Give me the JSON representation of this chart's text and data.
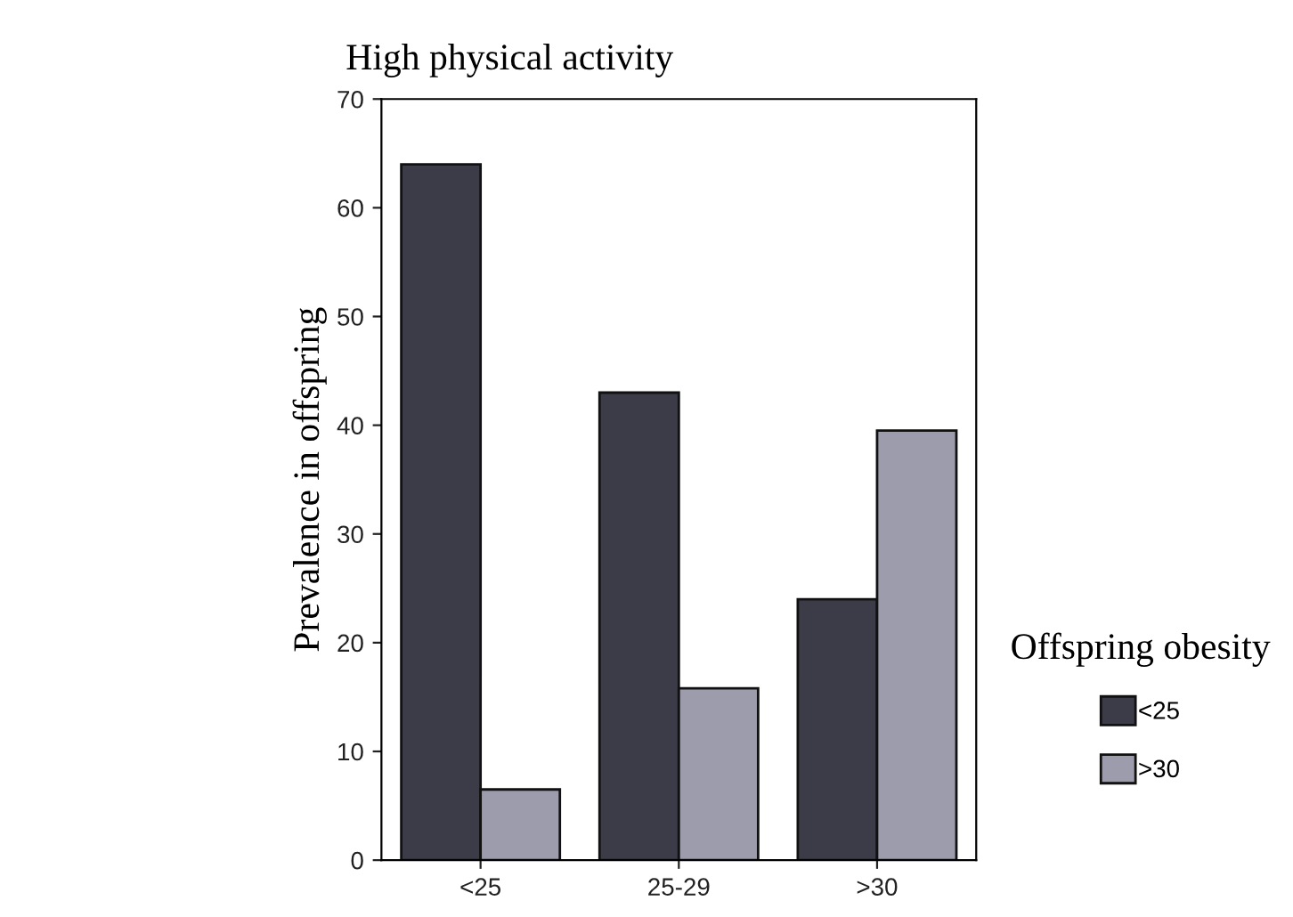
{
  "chart_data": {
    "type": "bar",
    "title": "High physical activity",
    "ylabel": "Prevalence in offspring",
    "legend_title": "Offspring obesity",
    "categories": [
      "<25",
      "25-29",
      ">30"
    ],
    "series": [
      {
        "name": "<25",
        "color": "#3c3c48",
        "values": [
          64,
          43,
          24
        ]
      },
      {
        "name": ">30",
        "color": "#9c9cac",
        "values": [
          6.5,
          15.8,
          39.5
        ]
      }
    ],
    "ylim": [
      0,
      70
    ],
    "yticks": [
      0,
      10,
      20,
      30,
      40,
      50,
      60,
      70
    ],
    "grid": false,
    "legend": "right"
  }
}
